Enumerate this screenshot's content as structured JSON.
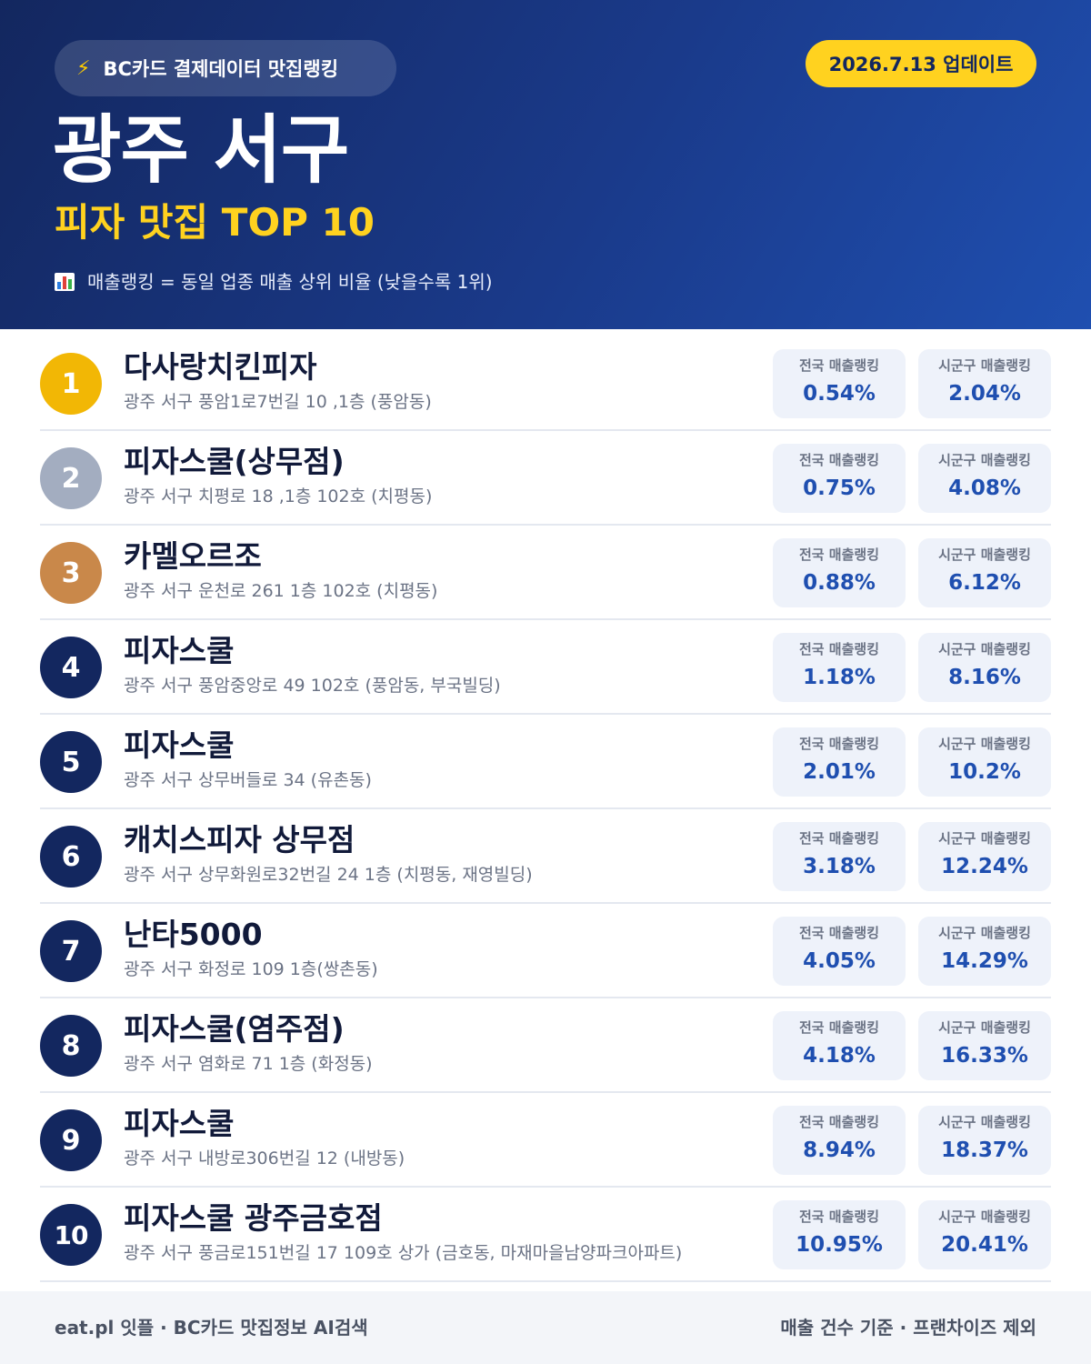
{
  "header": {
    "source_icon": "lightning-bolt-icon",
    "source_label": "BC카드 결제데이터 맛집랭킹",
    "update_label": "2026.7.13 업데이트",
    "title": "광주 서구",
    "subtitle": "피자 맛집 TOP 10",
    "note_icon": "bar-chart-icon",
    "note": "매출랭킹 = 동일 업종 매출 상위 비율 (낮을수록 1위)"
  },
  "stat_labels": {
    "national": "전국 매출랭킹",
    "local": "시군구 매출랭킹"
  },
  "restaurants": [
    {
      "rank": "1",
      "name": "다사랑치킨피자",
      "address": "광주 서구 풍암1로7번길 10 ,1층 (풍암동)",
      "national": "0.54%",
      "local": "2.04%"
    },
    {
      "rank": "2",
      "name": "피자스쿨(상무점)",
      "address": "광주 서구 치평로 18 ,1층 102호 (치평동)",
      "national": "0.75%",
      "local": "4.08%"
    },
    {
      "rank": "3",
      "name": "카멜오르조",
      "address": "광주 서구 운천로 261 1층 102호 (치평동)",
      "national": "0.88%",
      "local": "6.12%"
    },
    {
      "rank": "4",
      "name": "피자스쿨",
      "address": "광주 서구 풍암중앙로 49 102호 (풍암동, 부국빌딩)",
      "national": "1.18%",
      "local": "8.16%"
    },
    {
      "rank": "5",
      "name": "피자스쿨",
      "address": "광주 서구 상무버들로 34 (유촌동)",
      "national": "2.01%",
      "local": "10.2%"
    },
    {
      "rank": "6",
      "name": "캐치스피자 상무점",
      "address": "광주 서구 상무화원로32번길 24 1층 (치평동, 재영빌딩)",
      "national": "3.18%",
      "local": "12.24%"
    },
    {
      "rank": "7",
      "name": "난타5000",
      "address": "광주 서구 화정로 109 1층(쌍촌동)",
      "national": "4.05%",
      "local": "14.29%"
    },
    {
      "rank": "8",
      "name": "피자스쿨(염주점)",
      "address": "광주 서구 염화로 71 1층 (화정동)",
      "national": "4.18%",
      "local": "16.33%"
    },
    {
      "rank": "9",
      "name": "피자스쿨",
      "address": "광주 서구 내방로306번길 12 (내방동)",
      "national": "8.94%",
      "local": "18.37%"
    },
    {
      "rank": "10",
      "name": "피자스쿨 광주금호점",
      "address": "광주 서구 풍금로151번길 17 109호 상가 (금호동, 마재마을남양파크아파트)",
      "national": "10.95%",
      "local": "20.41%"
    }
  ],
  "colors": {
    "header_dark": "#13275f",
    "header_light": "#1f4fb0",
    "accent_yellow": "#ffd21f",
    "gold": "#f2b705",
    "silver": "#a3adc0",
    "bronze": "#c9884a",
    "value_blue": "#1f4fb0"
  },
  "footer": {
    "left": "eat.pl 잇플 · BC카드 맛집정보 AI검색",
    "right": "매출 건수 기준 · 프랜차이즈 제외"
  }
}
